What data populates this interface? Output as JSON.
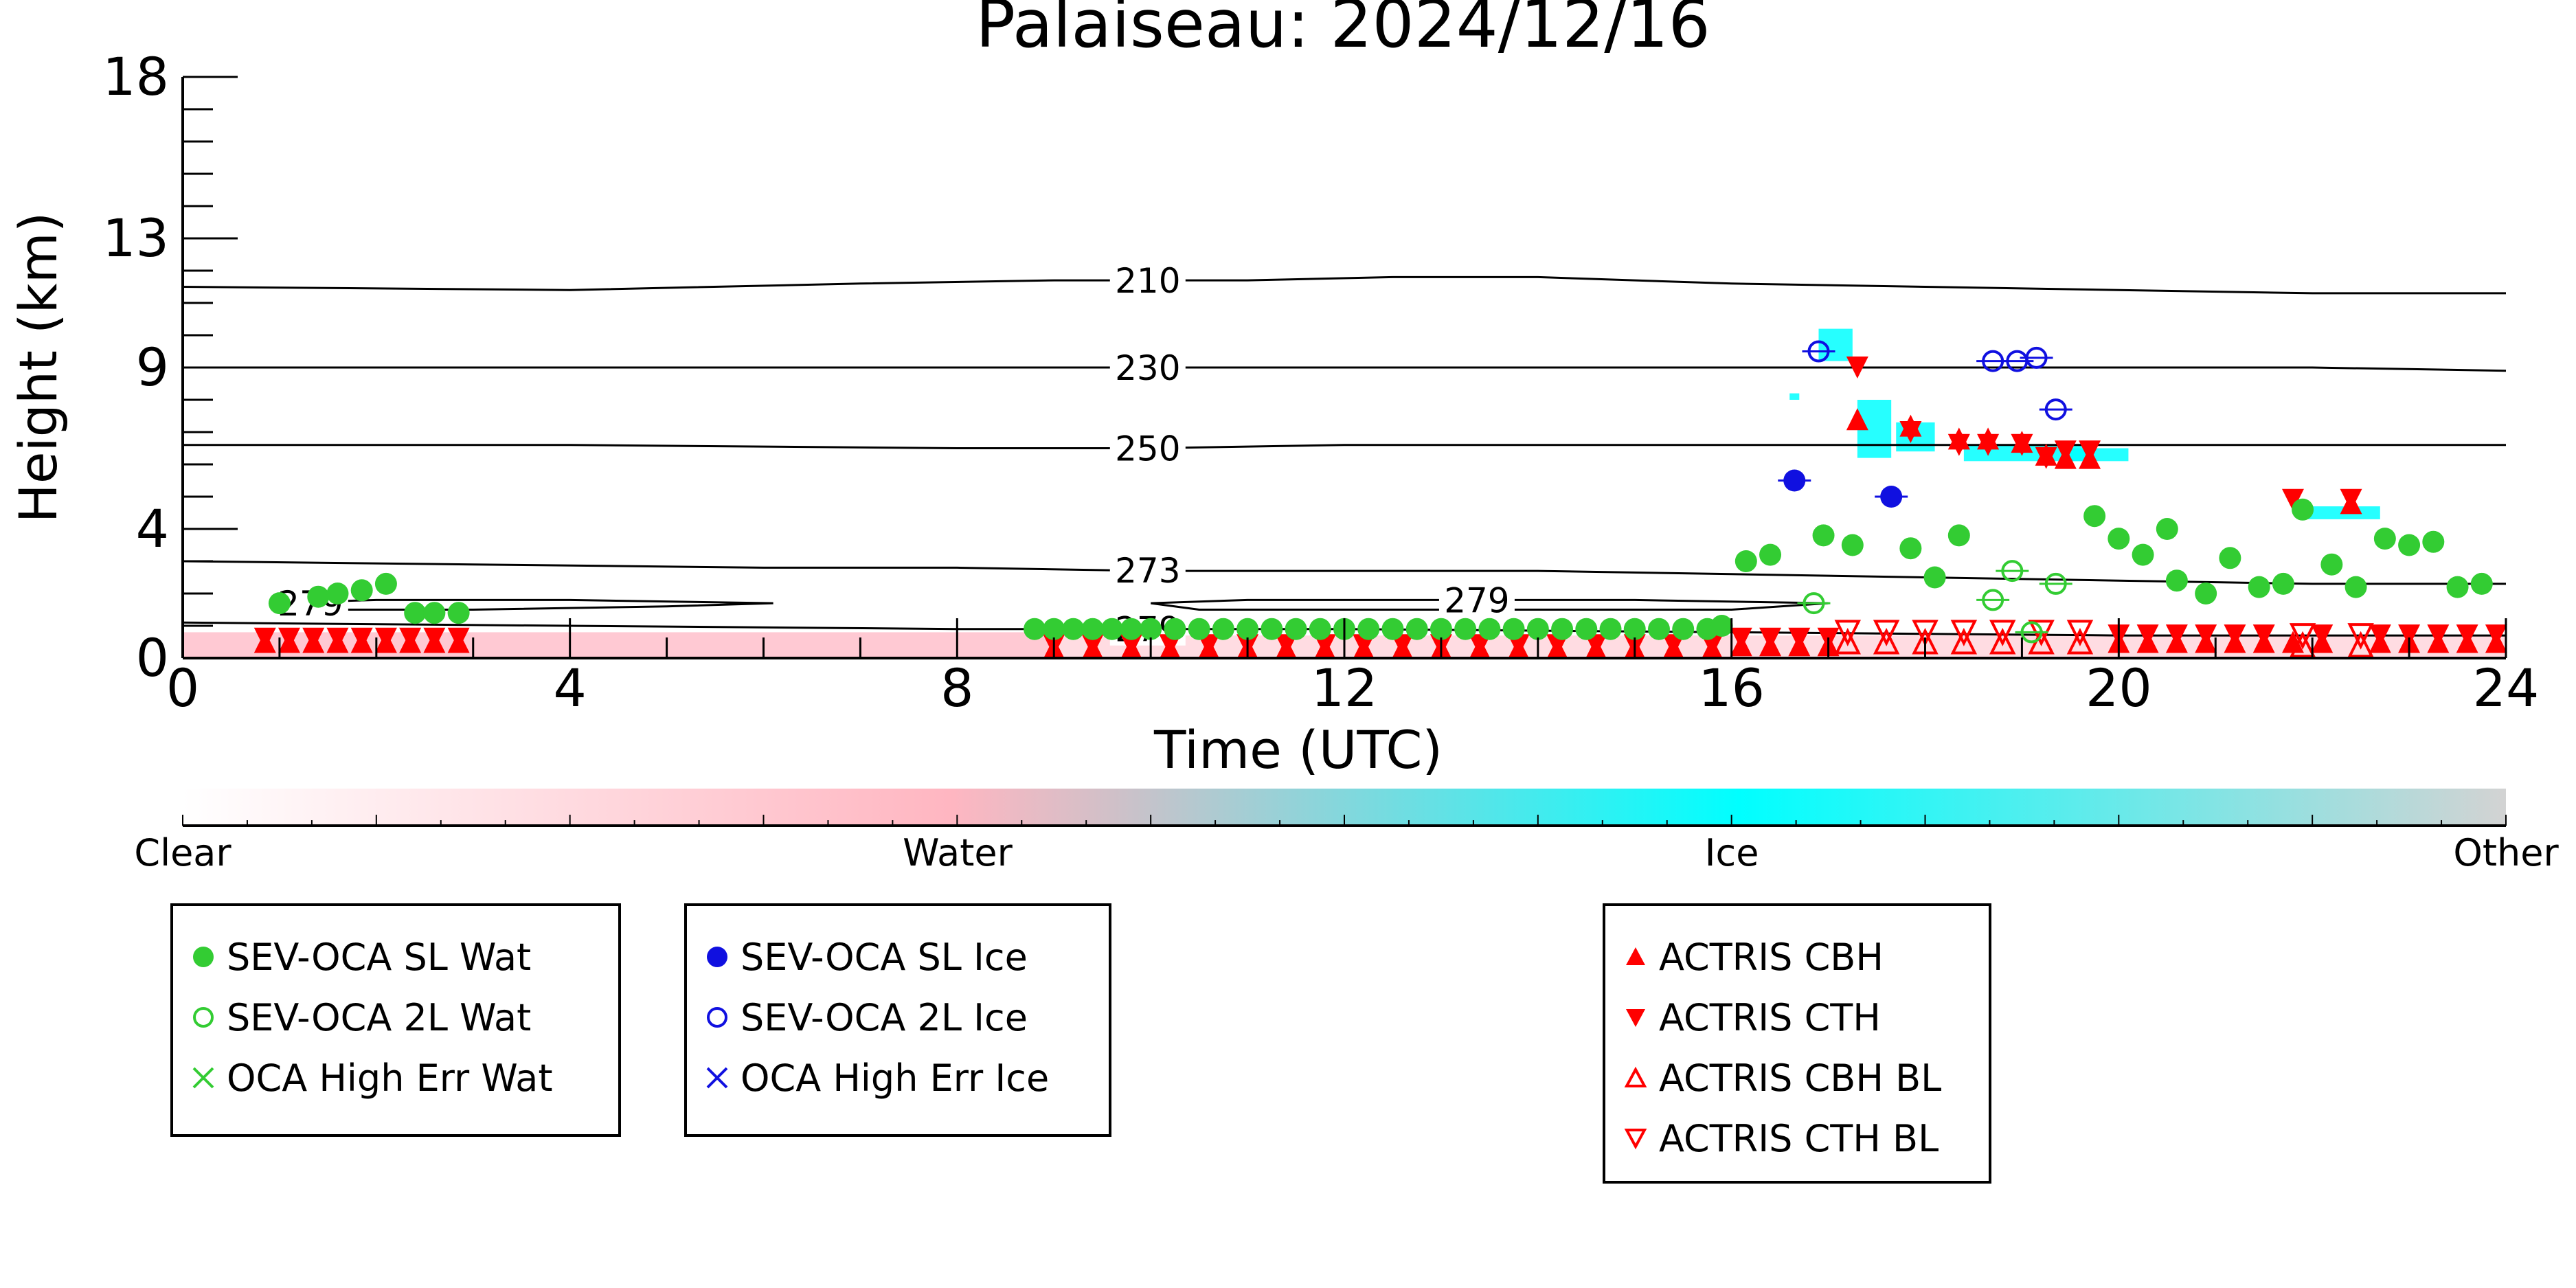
{
  "chart_data": {
    "type": "scatter",
    "title": "Palaiseau: 2024/12/16",
    "xlabel": "Time (UTC)",
    "ylabel": "Height (km)",
    "xlim": [
      0,
      24
    ],
    "ylim": [
      0,
      18
    ],
    "x_ticks": [
      0,
      4,
      8,
      12,
      16,
      20,
      24
    ],
    "x_tick_labels": [
      "0",
      "4",
      "8",
      "12",
      "16",
      "20",
      "24"
    ],
    "y_ticks": [
      0,
      4,
      9,
      13,
      18
    ],
    "y_tick_labels": [
      "0",
      "4",
      "9",
      "13",
      "18"
    ],
    "grid": false,
    "contour_lines": [
      {
        "label": "210",
        "label_x": 9.6,
        "points": [
          [
            0,
            11.5
          ],
          [
            4,
            11.4
          ],
          [
            7,
            11.6
          ],
          [
            9,
            11.7
          ],
          [
            11,
            11.7
          ],
          [
            12.5,
            11.8
          ],
          [
            14,
            11.8
          ],
          [
            16,
            11.6
          ],
          [
            18,
            11.5
          ],
          [
            20,
            11.4
          ],
          [
            22,
            11.3
          ],
          [
            24,
            11.3
          ]
        ]
      },
      {
        "label": "230",
        "label_x": 9.6,
        "points": [
          [
            0,
            9.0
          ],
          [
            4,
            9.0
          ],
          [
            8,
            9.0
          ],
          [
            10,
            9.0
          ],
          [
            12,
            9.0
          ],
          [
            14,
            9.0
          ],
          [
            16,
            9.0
          ],
          [
            18,
            9.0
          ],
          [
            20,
            9.0
          ],
          [
            22,
            9.0
          ],
          [
            24,
            8.9
          ]
        ]
      },
      {
        "label": "250",
        "label_x": 9.6,
        "points": [
          [
            0,
            6.6
          ],
          [
            4,
            6.6
          ],
          [
            8,
            6.5
          ],
          [
            10,
            6.5
          ],
          [
            12,
            6.6
          ],
          [
            14,
            6.6
          ],
          [
            16,
            6.6
          ],
          [
            18,
            6.6
          ],
          [
            20,
            6.6
          ],
          [
            22,
            6.6
          ],
          [
            24,
            6.6
          ]
        ]
      },
      {
        "label": "273",
        "label_x": 9.6,
        "points": [
          [
            0,
            3.0
          ],
          [
            3,
            2.9
          ],
          [
            6,
            2.8
          ],
          [
            8,
            2.8
          ],
          [
            10,
            2.7
          ],
          [
            12,
            2.7
          ],
          [
            14,
            2.7
          ],
          [
            16,
            2.6
          ],
          [
            18,
            2.5
          ],
          [
            20,
            2.4
          ],
          [
            22,
            2.3
          ],
          [
            24,
            2.3
          ]
        ]
      },
      {
        "label": "279",
        "label_x": 0.95,
        "points": [
          [
            0.9,
            1.7
          ],
          [
            2,
            1.8
          ],
          [
            4,
            1.8
          ],
          [
            6.1,
            1.7
          ],
          [
            5,
            1.6
          ],
          [
            3,
            1.5
          ],
          [
            1.5,
            1.5
          ],
          [
            0.9,
            1.7
          ]
        ]
      },
      {
        "label": "279",
        "label_x": 13.0,
        "points": [
          [
            10,
            1.7
          ],
          [
            11,
            1.8
          ],
          [
            13,
            1.8
          ],
          [
            15,
            1.8
          ],
          [
            17,
            1.7
          ],
          [
            16,
            1.5
          ],
          [
            14,
            1.5
          ],
          [
            12,
            1.5
          ],
          [
            10.5,
            1.5
          ],
          [
            10,
            1.7
          ]
        ]
      },
      {
        "label": "279",
        "label_x": 9.6,
        "points": [
          [
            0,
            1.1
          ],
          [
            4,
            1.0
          ],
          [
            8,
            0.9
          ],
          [
            12,
            0.9
          ],
          [
            16,
            0.8
          ],
          [
            20,
            0.7
          ],
          [
            24,
            0.7
          ]
        ]
      }
    ],
    "colorbar": {
      "labels": [
        "Clear",
        "Water",
        "Ice",
        "Other"
      ],
      "stops": [
        "#ffffff",
        "#ffb6c1",
        "#00ffff",
        "#d3d3d3"
      ]
    },
    "series": [
      {
        "name": "SEV-OCA SL Wat",
        "marker": "filled-circle",
        "color": "#33cc33",
        "points": [
          [
            1.0,
            1.7
          ],
          [
            1.4,
            1.9
          ],
          [
            1.6,
            2.0
          ],
          [
            1.85,
            2.1
          ],
          [
            2.1,
            2.3
          ],
          [
            2.4,
            1.4
          ],
          [
            2.6,
            1.4
          ],
          [
            2.85,
            1.4
          ],
          [
            8.8,
            0.9
          ],
          [
            9.0,
            0.9
          ],
          [
            9.2,
            0.9
          ],
          [
            9.4,
            0.9
          ],
          [
            9.6,
            0.9
          ],
          [
            9.8,
            0.9
          ],
          [
            10.0,
            0.9
          ],
          [
            10.25,
            0.9
          ],
          [
            10.5,
            0.9
          ],
          [
            10.75,
            0.9
          ],
          [
            11.0,
            0.9
          ],
          [
            11.25,
            0.9
          ],
          [
            11.5,
            0.9
          ],
          [
            11.75,
            0.9
          ],
          [
            12.0,
            0.9
          ],
          [
            12.25,
            0.9
          ],
          [
            12.5,
            0.9
          ],
          [
            12.75,
            0.9
          ],
          [
            13.0,
            0.9
          ],
          [
            13.25,
            0.9
          ],
          [
            13.5,
            0.9
          ],
          [
            13.75,
            0.9
          ],
          [
            14.0,
            0.9
          ],
          [
            14.25,
            0.9
          ],
          [
            14.5,
            0.9
          ],
          [
            14.75,
            0.9
          ],
          [
            15.0,
            0.9
          ],
          [
            15.25,
            0.9
          ],
          [
            15.5,
            0.9
          ],
          [
            15.75,
            0.9
          ],
          [
            15.9,
            1.0
          ],
          [
            16.15,
            3.0
          ],
          [
            16.4,
            3.2
          ],
          [
            16.95,
            3.8
          ],
          [
            17.25,
            3.5
          ],
          [
            17.85,
            3.4
          ],
          [
            18.1,
            2.5
          ],
          [
            18.35,
            3.8
          ],
          [
            19.75,
            4.4
          ],
          [
            20.0,
            3.7
          ],
          [
            20.25,
            3.2
          ],
          [
            20.5,
            4.0
          ],
          [
            20.6,
            2.4
          ],
          [
            20.9,
            2.0
          ],
          [
            21.15,
            3.1
          ],
          [
            21.45,
            2.2
          ],
          [
            21.7,
            2.3
          ],
          [
            21.9,
            4.6
          ],
          [
            22.2,
            2.9
          ],
          [
            22.45,
            2.2
          ],
          [
            22.75,
            3.7
          ],
          [
            23.0,
            3.5
          ],
          [
            23.25,
            3.6
          ],
          [
            23.5,
            2.2
          ],
          [
            23.75,
            2.3
          ]
        ]
      },
      {
        "name": "SEV-OCA 2L Wat",
        "marker": "open-circle",
        "color": "#33cc33",
        "points": [
          [
            16.85,
            1.7
          ],
          [
            18.7,
            1.8
          ],
          [
            18.9,
            2.7
          ],
          [
            19.1,
            0.8
          ],
          [
            19.35,
            2.3
          ]
        ]
      },
      {
        "name": "OCA High Err Wat",
        "marker": "x",
        "color": "#33cc33",
        "points": []
      },
      {
        "name": "SEV-OCA SL Ice",
        "marker": "filled-circle",
        "color": "#1010e0",
        "points": [
          [
            16.65,
            5.5
          ],
          [
            17.65,
            5.0
          ]
        ]
      },
      {
        "name": "SEV-OCA 2L Ice",
        "marker": "open-circle",
        "color": "#1010e0",
        "points": [
          [
            16.9,
            9.5
          ],
          [
            18.7,
            9.2
          ],
          [
            18.95,
            9.2
          ],
          [
            19.15,
            9.3
          ],
          [
            19.35,
            7.7
          ]
        ]
      },
      {
        "name": "OCA High Err Ice",
        "marker": "x",
        "color": "#1010e0",
        "points": []
      },
      {
        "name": "ACTRIS CBH",
        "marker": "triangle-up",
        "color": "#ff0000",
        "points": [
          [
            0.85,
            0.5
          ],
          [
            1.1,
            0.5
          ],
          [
            1.35,
            0.5
          ],
          [
            1.6,
            0.5
          ],
          [
            1.85,
            0.5
          ],
          [
            2.1,
            0.5
          ],
          [
            2.35,
            0.5
          ],
          [
            2.6,
            0.5
          ],
          [
            2.85,
            0.5
          ],
          [
            9.0,
            0.3
          ],
          [
            9.4,
            0.3
          ],
          [
            9.8,
            0.3
          ],
          [
            10.2,
            0.3
          ],
          [
            10.6,
            0.3
          ],
          [
            11.0,
            0.3
          ],
          [
            11.4,
            0.3
          ],
          [
            11.8,
            0.3
          ],
          [
            12.2,
            0.3
          ],
          [
            12.6,
            0.3
          ],
          [
            13.0,
            0.3
          ],
          [
            13.4,
            0.3
          ],
          [
            13.8,
            0.3
          ],
          [
            14.2,
            0.3
          ],
          [
            14.6,
            0.3
          ],
          [
            15.0,
            0.3
          ],
          [
            15.4,
            0.3
          ],
          [
            15.8,
            0.3
          ],
          [
            16.1,
            0.4
          ],
          [
            16.4,
            0.4
          ],
          [
            16.7,
            0.4
          ],
          [
            17.0,
            0.4
          ],
          [
            17.3,
            7.4
          ],
          [
            17.85,
            7.2
          ],
          [
            18.35,
            6.8
          ],
          [
            18.65,
            6.8
          ],
          [
            19.0,
            6.7
          ],
          [
            19.25,
            6.3
          ],
          [
            19.45,
            6.2
          ],
          [
            19.7,
            6.2
          ],
          [
            20.0,
            0.5
          ],
          [
            20.3,
            0.5
          ],
          [
            20.6,
            0.5
          ],
          [
            20.9,
            0.5
          ],
          [
            21.2,
            0.5
          ],
          [
            21.5,
            0.5
          ],
          [
            21.8,
            0.5
          ],
          [
            22.1,
            0.5
          ],
          [
            22.4,
            4.8
          ],
          [
            22.7,
            0.5
          ],
          [
            23.0,
            0.5
          ],
          [
            23.3,
            0.5
          ],
          [
            23.6,
            0.5
          ],
          [
            23.9,
            0.5
          ]
        ]
      },
      {
        "name": "ACTRIS CTH",
        "marker": "triangle-down",
        "color": "#ff0000",
        "points": [
          [
            0.85,
            0.6
          ],
          [
            1.1,
            0.6
          ],
          [
            1.35,
            0.6
          ],
          [
            1.6,
            0.6
          ],
          [
            1.85,
            0.6
          ],
          [
            2.1,
            0.6
          ],
          [
            2.35,
            0.6
          ],
          [
            2.6,
            0.6
          ],
          [
            2.85,
            0.6
          ],
          [
            9.0,
            0.4
          ],
          [
            9.4,
            0.4
          ],
          [
            9.8,
            0.4
          ],
          [
            10.2,
            0.4
          ],
          [
            10.6,
            0.4
          ],
          [
            11.0,
            0.4
          ],
          [
            11.4,
            0.4
          ],
          [
            11.8,
            0.4
          ],
          [
            12.2,
            0.4
          ],
          [
            12.6,
            0.4
          ],
          [
            13.0,
            0.4
          ],
          [
            13.4,
            0.4
          ],
          [
            13.8,
            0.4
          ],
          [
            14.2,
            0.4
          ],
          [
            14.6,
            0.4
          ],
          [
            15.0,
            0.4
          ],
          [
            15.4,
            0.4
          ],
          [
            15.8,
            0.4
          ],
          [
            16.1,
            0.6
          ],
          [
            16.4,
            0.6
          ],
          [
            16.7,
            0.6
          ],
          [
            17.0,
            0.6
          ],
          [
            17.3,
            9.0
          ],
          [
            17.85,
            7.0
          ],
          [
            18.35,
            6.6
          ],
          [
            18.65,
            6.6
          ],
          [
            19.0,
            6.6
          ],
          [
            19.25,
            6.2
          ],
          [
            19.45,
            6.4
          ],
          [
            19.7,
            6.4
          ],
          [
            20.0,
            0.7
          ],
          [
            20.3,
            0.7
          ],
          [
            20.6,
            0.7
          ],
          [
            20.9,
            0.7
          ],
          [
            21.2,
            0.7
          ],
          [
            21.5,
            0.7
          ],
          [
            21.8,
            4.9
          ],
          [
            22.1,
            0.7
          ],
          [
            22.4,
            4.9
          ],
          [
            22.7,
            0.7
          ],
          [
            23.0,
            0.7
          ],
          [
            23.3,
            0.7
          ],
          [
            23.6,
            0.7
          ],
          [
            23.9,
            0.7
          ]
        ]
      },
      {
        "name": "ACTRIS CBH BL",
        "marker": "open-triangle-up",
        "color": "#ff0000",
        "points": [
          [
            17.2,
            0.5
          ],
          [
            17.6,
            0.5
          ],
          [
            18.0,
            0.5
          ],
          [
            18.4,
            0.5
          ],
          [
            18.8,
            0.5
          ],
          [
            19.2,
            0.5
          ],
          [
            19.6,
            0.5
          ],
          [
            21.9,
            0.4
          ],
          [
            22.5,
            0.4
          ]
        ]
      },
      {
        "name": "ACTRIS CTH BL",
        "marker": "open-triangle-down",
        "color": "#ff0000",
        "points": [
          [
            17.2,
            0.8
          ],
          [
            17.6,
            0.8
          ],
          [
            18.0,
            0.8
          ],
          [
            18.4,
            0.8
          ],
          [
            18.8,
            0.8
          ],
          [
            19.2,
            0.8
          ],
          [
            19.6,
            0.8
          ],
          [
            21.9,
            0.7
          ],
          [
            22.5,
            0.7
          ]
        ]
      }
    ]
  }
}
